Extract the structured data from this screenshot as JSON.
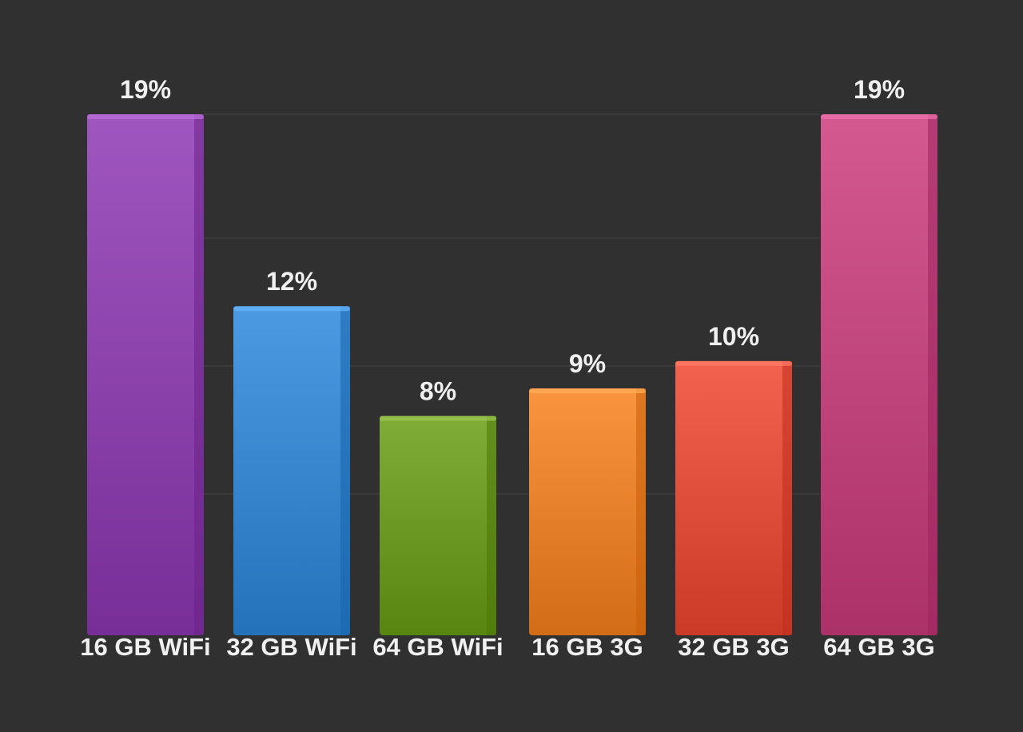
{
  "chart_data": {
    "type": "bar",
    "categories": [
      "16 GB WiFi",
      "32 GB WiFi",
      "64 GB WiFi",
      "16 GB 3G",
      "32 GB 3G",
      "64 GB 3G"
    ],
    "values": [
      19,
      12,
      8,
      9,
      10,
      19
    ],
    "value_labels": [
      "19%",
      "12%",
      "8%",
      "9%",
      "10%",
      "19%"
    ],
    "ylim": [
      0,
      19
    ],
    "grid": true,
    "colors": [
      "#8e44ad",
      "#3a88cf",
      "#6e9a26",
      "#e9822c",
      "#e0503c",
      "#c2477f"
    ]
  }
}
